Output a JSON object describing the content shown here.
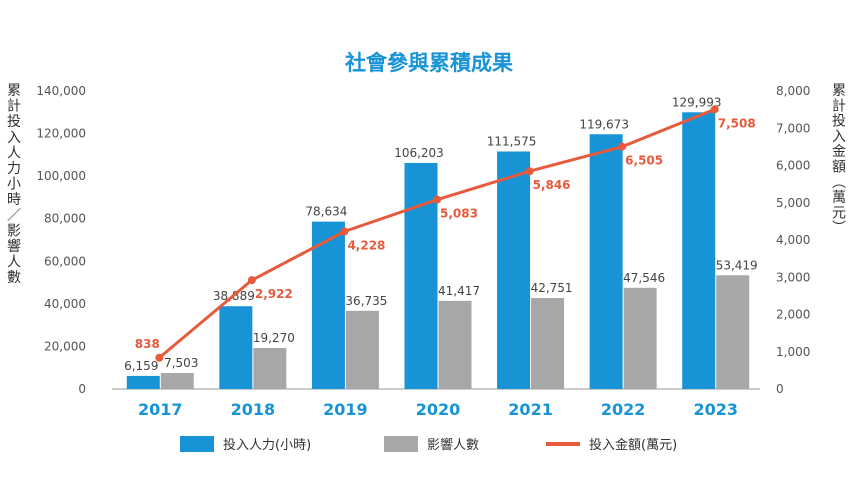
{
  "chart_data": {
    "type": "bar",
    "title": "社會參與累積成果",
    "categories": [
      "2017",
      "2018",
      "2019",
      "2020",
      "2021",
      "2022",
      "2023"
    ],
    "series": [
      {
        "name": "投入人力(小時)",
        "kind": "bar",
        "axis": "left",
        "color": "#1793d6",
        "values": [
          6159,
          38889,
          78634,
          106203,
          111575,
          119673,
          129993
        ],
        "labels": [
          "6,159",
          "38,889",
          "78,634",
          "106,203",
          "111,575",
          "119,673",
          "129,993"
        ]
      },
      {
        "name": "影響人數",
        "kind": "bar",
        "axis": "left",
        "color": "#a7a7a9",
        "values": [
          7503,
          19270,
          36735,
          41417,
          42751,
          47546,
          53419
        ],
        "labels": [
          "7,503",
          "19,270",
          "36,735",
          "41,417",
          "42,751",
          "47,546",
          "53,419"
        ]
      },
      {
        "name": "投入金額(萬元)",
        "kind": "line",
        "axis": "right",
        "color": "#e85a3c",
        "values": [
          838,
          2922,
          4228,
          5083,
          5846,
          6505,
          7508
        ],
        "labels": [
          "838",
          "2,922",
          "4,228",
          "5,083",
          "5,846",
          "6,505",
          "7,508"
        ]
      }
    ],
    "y_left": {
      "label": "累計投入人力小時／影響人數",
      "range": [
        0,
        140000
      ],
      "ticks": [
        "0",
        "20,000",
        "40,000",
        "60,000",
        "80,000",
        "100,000",
        "120,000",
        "140,000"
      ]
    },
    "y_right": {
      "label": "累計投入金額︵萬元︶",
      "range": [
        0,
        8000
      ],
      "ticks": [
        "0",
        "1,000",
        "2,000",
        "3,000",
        "4,000",
        "5,000",
        "6,000",
        "7,000",
        "8,000"
      ]
    },
    "grid": false,
    "legend_position": "bottom"
  }
}
